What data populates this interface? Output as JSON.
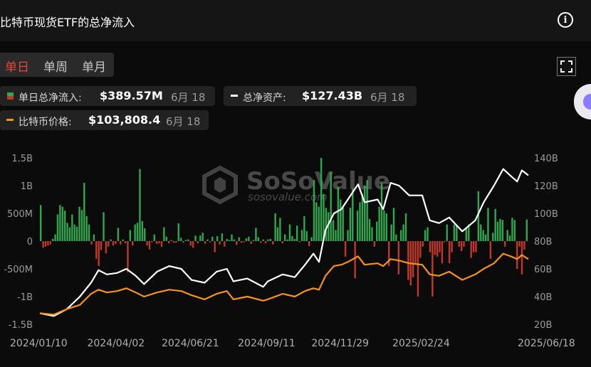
{
  "header": {
    "title": "比特币现货ETF的总净流入",
    "info_icon": "info-icon"
  },
  "tabs": [
    "单日",
    "单周",
    "单月"
  ],
  "active_tab": 0,
  "stats": {
    "daily_inflow_label": "单日总净流入:",
    "daily_inflow_value": "$389.57M",
    "daily_inflow_date": "6月 18",
    "net_assets_label": "总净资产:",
    "net_assets_value": "$127.43B",
    "net_assets_date": "6月 18",
    "btc_price_label": "比特币价格:",
    "btc_price_value": "$103,808.4",
    "btc_price_date": "6月 18"
  },
  "watermark": {
    "brand": "SoSoValue",
    "url": "sosovalue.com"
  },
  "colors": {
    "inflow": "#2fa84f",
    "outflow": "#c0392b",
    "net_assets": "#ffffff",
    "btc_price": "#f7931a",
    "active_tab": "#e5463b"
  },
  "chart_data": {
    "type": "bar",
    "x_tick_labels": [
      "2024/01/10",
      "2024/04/02",
      "2024/06/21",
      "2024/09/11",
      "2024/11/29",
      "2025/02/24",
      "2025/06/18"
    ],
    "y_left_ticks": [
      "1.5B",
      "1B",
      "500M",
      "0",
      "-500M",
      "-1B",
      "-1.5B"
    ],
    "y_left_range": [
      -1500,
      1500
    ],
    "y_left_unit": "M USD",
    "y_right_ticks": [
      "140B",
      "120B",
      "100B",
      "80B",
      "60B",
      "40B",
      "20B"
    ],
    "y_right_range": [
      20,
      140
    ],
    "y_right_unit": "B USD",
    "series": [
      {
        "name": "单日总净流入",
        "kind": "bar",
        "axis": "left",
        "values": [
          650,
          -120,
          -100,
          -80,
          -60,
          40,
          120,
          480,
          650,
          620,
          550,
          330,
          250,
          480,
          300,
          260,
          620,
          560,
          1050,
          450,
          300,
          -60,
          120,
          -320,
          -450,
          -160,
          520,
          -220,
          -100,
          30,
          -80,
          -50,
          240,
          -60,
          30,
          -40,
          -560,
          200,
          -80,
          300,
          330,
          1300,
          360,
          230,
          -80,
          -150,
          -20,
          120,
          -50,
          -40,
          -100,
          250,
          80,
          -40,
          20,
          -30,
          -30,
          320,
          60,
          -30,
          20,
          30,
          -80,
          -120,
          100,
          -40,
          100,
          150,
          -50,
          30,
          -20,
          80,
          -200,
          90,
          -60,
          140,
          -100,
          40,
          20,
          120,
          30,
          -70,
          70,
          -30,
          -20,
          50,
          80,
          -50,
          20,
          240,
          70,
          -30,
          30,
          -40,
          30,
          40,
          -60,
          500,
          250,
          420,
          -40,
          120,
          30,
          300,
          90,
          40,
          280,
          -20,
          200,
          450,
          180,
          -90,
          70,
          1100,
          700,
          620,
          1500,
          850,
          600,
          520,
          1250,
          380,
          200,
          980,
          750,
          630,
          -280,
          200,
          600,
          950,
          -670,
          550,
          700,
          850,
          1000,
          1100,
          400,
          250,
          -100,
          350,
          620,
          1050,
          550,
          500,
          -450,
          300,
          600,
          120,
          -600,
          200,
          300,
          500,
          -700,
          -800,
          -650,
          -400,
          -1000,
          -300,
          -100,
          200,
          250,
          -200,
          -1000,
          -250,
          -280,
          -200,
          -400,
          -20,
          300,
          -400,
          -200,
          300,
          280,
          -100,
          -180,
          -100,
          250,
          300,
          -300,
          -200,
          -200,
          900,
          300,
          200,
          120,
          600,
          -320,
          150,
          580,
          350,
          400,
          380,
          -100,
          200,
          100,
          420,
          380,
          -500,
          -100,
          -600,
          -150,
          390
        ]
      },
      {
        "name": "总净资产",
        "kind": "line",
        "axis": "right",
        "points": [
          {
            "x": "2024/01/10",
            "y": 28
          },
          {
            "x": "2024/01/25",
            "y": 26
          },
          {
            "x": "2024/02/08",
            "y": 31
          },
          {
            "x": "2024/02/22",
            "y": 40
          },
          {
            "x": "2024/03/05",
            "y": 50
          },
          {
            "x": "2024/03/13",
            "y": 59
          },
          {
            "x": "2024/03/22",
            "y": 56
          },
          {
            "x": "2024/04/02",
            "y": 57
          },
          {
            "x": "2024/04/12",
            "y": 60
          },
          {
            "x": "2024/04/22",
            "y": 55
          },
          {
            "x": "2024/05/01",
            "y": 49
          },
          {
            "x": "2024/05/15",
            "y": 58
          },
          {
            "x": "2024/05/28",
            "y": 62
          },
          {
            "x": "2024/06/10",
            "y": 60
          },
          {
            "x": "2024/06/21",
            "y": 52
          },
          {
            "x": "2024/07/05",
            "y": 50
          },
          {
            "x": "2024/07/18",
            "y": 58
          },
          {
            "x": "2024/07/29",
            "y": 60
          },
          {
            "x": "2024/08/05",
            "y": 51
          },
          {
            "x": "2024/08/20",
            "y": 53
          },
          {
            "x": "2024/09/06",
            "y": 47
          },
          {
            "x": "2024/09/11",
            "y": 51
          },
          {
            "x": "2024/09/27",
            "y": 56
          },
          {
            "x": "2024/10/10",
            "y": 54
          },
          {
            "x": "2024/10/21",
            "y": 63
          },
          {
            "x": "2024/10/30",
            "y": 71
          },
          {
            "x": "2024/11/05",
            "y": 65
          },
          {
            "x": "2024/11/12",
            "y": 88
          },
          {
            "x": "2024/11/21",
            "y": 100
          },
          {
            "x": "2024/11/29",
            "y": 103
          },
          {
            "x": "2024/12/06",
            "y": 110
          },
          {
            "x": "2024/12/17",
            "y": 121
          },
          {
            "x": "2024/12/24",
            "y": 108
          },
          {
            "x": "2025/01/07",
            "y": 110
          },
          {
            "x": "2025/01/13",
            "y": 103
          },
          {
            "x": "2025/01/21",
            "y": 122
          },
          {
            "x": "2025/01/30",
            "y": 120
          },
          {
            "x": "2025/02/10",
            "y": 113
          },
          {
            "x": "2025/02/24",
            "y": 113
          },
          {
            "x": "2025/03/04",
            "y": 95
          },
          {
            "x": "2025/03/14",
            "y": 93
          },
          {
            "x": "2025/03/25",
            "y": 97
          },
          {
            "x": "2025/04/08",
            "y": 87
          },
          {
            "x": "2025/04/22",
            "y": 95
          },
          {
            "x": "2025/05/01",
            "y": 108
          },
          {
            "x": "2025/05/12",
            "y": 120
          },
          {
            "x": "2025/05/22",
            "y": 132
          },
          {
            "x": "2025/05/30",
            "y": 127
          },
          {
            "x": "2025/06/06",
            "y": 123
          },
          {
            "x": "2025/06/11",
            "y": 131
          },
          {
            "x": "2025/06/18",
            "y": 127.43
          }
        ]
      },
      {
        "name": "比特币价格",
        "kind": "line",
        "axis": "right_scaled",
        "points": [
          {
            "x": "2024/01/10",
            "y": 28
          },
          {
            "x": "2024/01/25",
            "y": 27
          },
          {
            "x": "2024/02/08",
            "y": 31
          },
          {
            "x": "2024/02/22",
            "y": 34
          },
          {
            "x": "2024/03/05",
            "y": 42
          },
          {
            "x": "2024/03/13",
            "y": 45
          },
          {
            "x": "2024/03/22",
            "y": 43
          },
          {
            "x": "2024/04/02",
            "y": 44
          },
          {
            "x": "2024/04/12",
            "y": 46
          },
          {
            "x": "2024/04/22",
            "y": 43
          },
          {
            "x": "2024/05/01",
            "y": 40
          },
          {
            "x": "2024/05/15",
            "y": 43
          },
          {
            "x": "2024/05/28",
            "y": 45
          },
          {
            "x": "2024/06/10",
            "y": 44
          },
          {
            "x": "2024/06/21",
            "y": 41
          },
          {
            "x": "2024/07/05",
            "y": 38
          },
          {
            "x": "2024/07/18",
            "y": 42
          },
          {
            "x": "2024/07/29",
            "y": 44
          },
          {
            "x": "2024/08/05",
            "y": 38
          },
          {
            "x": "2024/08/20",
            "y": 40
          },
          {
            "x": "2024/09/06",
            "y": 37
          },
          {
            "x": "2024/09/11",
            "y": 38
          },
          {
            "x": "2024/09/27",
            "y": 42
          },
          {
            "x": "2024/10/10",
            "y": 40
          },
          {
            "x": "2024/10/21",
            "y": 44
          },
          {
            "x": "2024/10/30",
            "y": 46
          },
          {
            "x": "2024/11/05",
            "y": 45
          },
          {
            "x": "2024/11/12",
            "y": 55
          },
          {
            "x": "2024/11/21",
            "y": 62
          },
          {
            "x": "2024/11/29",
            "y": 63
          },
          {
            "x": "2024/12/06",
            "y": 65
          },
          {
            "x": "2024/12/17",
            "y": 69
          },
          {
            "x": "2024/12/24",
            "y": 63
          },
          {
            "x": "2025/01/07",
            "y": 64
          },
          {
            "x": "2025/01/13",
            "y": 62
          },
          {
            "x": "2025/01/21",
            "y": 67
          },
          {
            "x": "2025/01/30",
            "y": 66
          },
          {
            "x": "2025/02/10",
            "y": 64
          },
          {
            "x": "2025/02/24",
            "y": 63
          },
          {
            "x": "2025/03/04",
            "y": 56
          },
          {
            "x": "2025/03/14",
            "y": 55
          },
          {
            "x": "2025/03/25",
            "y": 58
          },
          {
            "x": "2025/04/08",
            "y": 52
          },
          {
            "x": "2025/04/22",
            "y": 56
          },
          {
            "x": "2025/05/01",
            "y": 60
          },
          {
            "x": "2025/05/12",
            "y": 64
          },
          {
            "x": "2025/05/22",
            "y": 71
          },
          {
            "x": "2025/05/30",
            "y": 69
          },
          {
            "x": "2025/06/06",
            "y": 67
          },
          {
            "x": "2025/06/11",
            "y": 70
          },
          {
            "x": "2025/06/18",
            "y": 67
          }
        ]
      }
    ],
    "grid": false,
    "legend": "top"
  }
}
